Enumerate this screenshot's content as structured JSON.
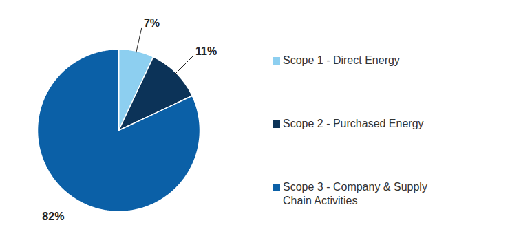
{
  "chart_data": {
    "type": "pie",
    "categories": [
      "Scope 1 - Direct Energy",
      "Scope 2 - Purchased Energy",
      "Scope 3 - Company & Supply Chain Activities"
    ],
    "values": [
      7,
      11,
      82
    ],
    "value_labels": [
      "7%",
      "11%",
      "82%"
    ],
    "colors": [
      "#8dcff0",
      "#0c3358",
      "#0b60a7"
    ],
    "data_labels": true,
    "legend": "right"
  }
}
